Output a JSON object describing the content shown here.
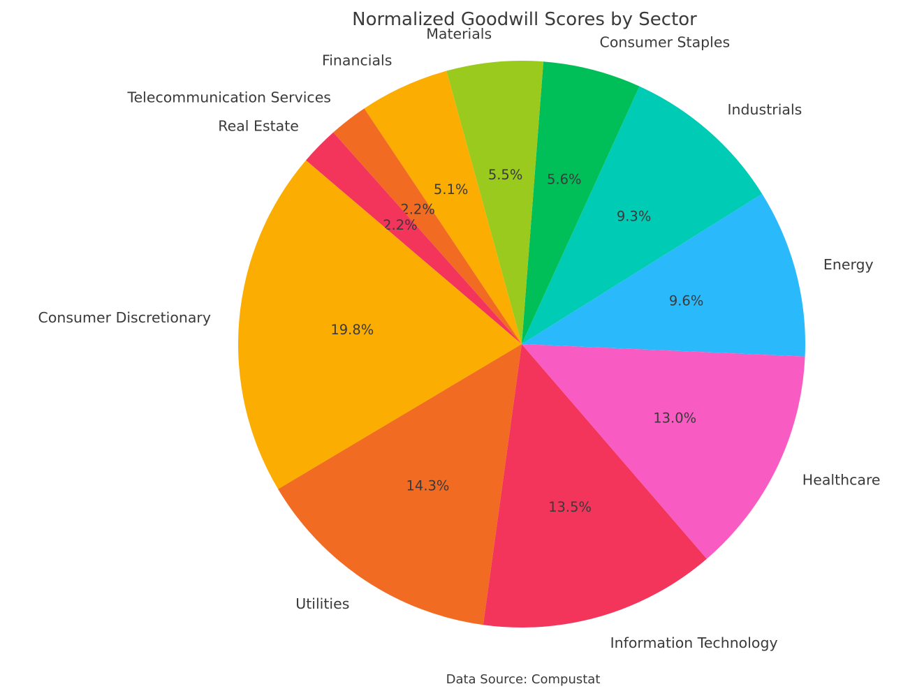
{
  "chart_data": {
    "type": "pie",
    "title": "Normalized Goodwill Scores by Sector",
    "source_note": "Data Source: Compustat",
    "start_angle_deg": -2.5,
    "direction": "counterclockwise",
    "label_distance_ratio": 1.1,
    "pct_distance_ratio": 0.6,
    "text_color": "#3a3a3a",
    "background_color": "#ffffff",
    "legend": "none",
    "slices": [
      {
        "label": "Energy",
        "value_pct": 9.6,
        "pct_label": "9.6%",
        "color": "#2ABAFC"
      },
      {
        "label": "Industrials",
        "value_pct": 9.3,
        "pct_label": "9.3%",
        "color": "#00CBB5"
      },
      {
        "label": "Consumer Staples",
        "value_pct": 5.6,
        "pct_label": "5.6%",
        "color": "#00BF58"
      },
      {
        "label": "Materials",
        "value_pct": 5.5,
        "pct_label": "5.5%",
        "color": "#9ACA1E"
      },
      {
        "label": "Financials",
        "value_pct": 5.1,
        "pct_label": "5.1%",
        "color": "#FCAD02"
      },
      {
        "label": "Telecommunication Services",
        "value_pct": 2.2,
        "pct_label": "2.2%",
        "color": "#F26B22"
      },
      {
        "label": "Real Estate",
        "value_pct": 2.2,
        "pct_label": "2.2%",
        "color": "#F4355B"
      },
      {
        "label": "Consumer Discretionary",
        "value_pct": 19.8,
        "pct_label": "19.8%",
        "color": "#FCAD02"
      },
      {
        "label": "Utilities",
        "value_pct": 14.3,
        "pct_label": "14.3%",
        "color": "#F26B22"
      },
      {
        "label": "Information Technology",
        "value_pct": 13.5,
        "pct_label": "13.5%",
        "color": "#F4355B"
      },
      {
        "label": "Healthcare",
        "value_pct": 13.0,
        "pct_label": "13.0%",
        "color": "#F85CC3"
      }
    ]
  }
}
